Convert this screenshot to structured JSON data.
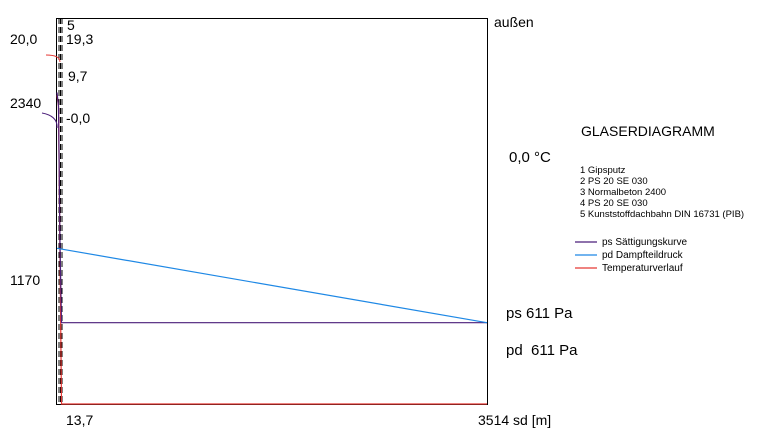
{
  "chart_data": {
    "type": "line",
    "title": "GLASERDIAGRAMM",
    "layers": [
      "1 Gipsputz",
      "2 PS 20 SE 030",
      "3 Normalbeton 2400",
      "4 PS 20 SE 030",
      "5 Kunststoffdachbahn DIN 16731 (PIB)"
    ],
    "legend": [
      {
        "label": "ps Sättigungskurve",
        "color": "#4b1f7a"
      },
      {
        "label": "pd Dampfteildruck",
        "color": "#1e88e5"
      },
      {
        "label": "Temperaturverlauf",
        "color": "#e53935"
      }
    ],
    "side_label_right": "außen",
    "left_labels": {
      "temp_inside": "20,0",
      "ps_inside": "2340",
      "pd_inside": "1170"
    },
    "interface_labels": [
      "5",
      "19,3",
      "9,7",
      "-0,0"
    ],
    "right_labels": {
      "temp_outside": "0,0 °C",
      "ps_outside": "ps 611 Pa",
      "pd_outside": "pd  611 Pa"
    },
    "x_tick_labels": {
      "first": "13,7",
      "end": "3514 sd [m]"
    },
    "x_layer_boundaries": [
      0,
      0.02,
      0.44,
      13.7,
      13.72,
      3514
    ],
    "x_range": [
      0,
      3514
    ],
    "temperature": {
      "x": [
        0,
        0.02,
        0.44,
        13.7,
        3514
      ],
      "values": [
        20.0,
        19.3,
        9.7,
        -0.0,
        0.0
      ],
      "range": [
        0,
        25
      ]
    },
    "pressure": {
      "range": [
        0,
        2900
      ],
      "ps": {
        "x": [
          0,
          0.02,
          0.44,
          13.7,
          3514
        ],
        "values": [
          2340,
          2240,
          1200,
          611,
          611
        ]
      },
      "pd": {
        "x": [
          0,
          3514
        ],
        "values": [
          1170,
          611
        ]
      }
    }
  }
}
